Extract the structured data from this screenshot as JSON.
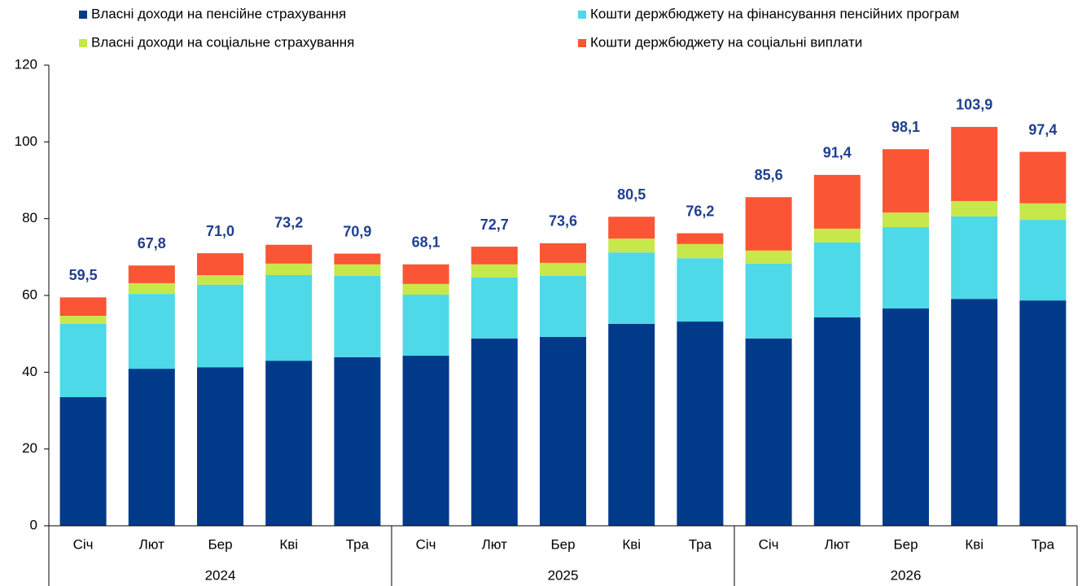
{
  "chart_data": {
    "type": "stacked_bar",
    "groups": [
      {
        "label": "2024",
        "categories": [
          "Січ",
          "Лют",
          "Бер",
          "Кві",
          "Тра"
        ]
      },
      {
        "label": "2025",
        "categories": [
          "Січ",
          "Лют",
          "Бер",
          "Кві",
          "Тра"
        ]
      },
      {
        "label": "2026",
        "categories": [
          "Січ",
          "Лют",
          "Бер",
          "Кві",
          "Тра"
        ]
      }
    ],
    "series": [
      {
        "name": "Власні доходи на пенсійне страхування",
        "color": "#023a8a",
        "values": [
          33.5,
          40.9,
          41.3,
          43.0,
          43.9,
          44.3,
          48.8,
          49.2,
          52.6,
          53.2,
          48.8,
          54.3,
          56.6,
          59.1,
          58.7
        ]
      },
      {
        "name": "Кошти держбюджету на фінансування пенсійних програм",
        "color": "#4dd9e8",
        "values": [
          19.1,
          19.5,
          21.5,
          22.3,
          21.2,
          15.9,
          15.9,
          15.9,
          18.6,
          16.5,
          19.5,
          19.5,
          21.2,
          21.5,
          21.0
        ]
      },
      {
        "name": "Власні доходи на соціальне страхування",
        "color": "#c6e84a",
        "values": [
          2.1,
          2.8,
          2.5,
          3.0,
          3.0,
          2.8,
          3.4,
          3.4,
          3.6,
          3.7,
          3.4,
          3.6,
          3.8,
          4.0,
          4.3
        ]
      },
      {
        "name": "Кошти держбюджету на соціальні виплати",
        "color": "#fa5534",
        "values": [
          4.8,
          4.6,
          5.7,
          4.9,
          2.8,
          5.1,
          4.6,
          5.1,
          5.7,
          2.8,
          13.9,
          14.0,
          16.5,
          19.3,
          13.4
        ]
      }
    ],
    "totals": [
      59.5,
      67.8,
      71.0,
      73.2,
      70.9,
      68.1,
      72.7,
      73.6,
      80.5,
      76.2,
      85.6,
      91.4,
      98.1,
      103.9,
      97.4
    ],
    "total_labels": [
      "59,5",
      "67,8",
      "71,0",
      "73,2",
      "70,9",
      "68,1",
      "72,7",
      "73,6",
      "80,5",
      "76,2",
      "85,6",
      "91,4",
      "98,1",
      "103,9",
      "97,4"
    ],
    "ylim": [
      0,
      120
    ],
    "yticks": [
      0,
      20,
      40,
      60,
      80,
      100,
      120
    ],
    "grid": false
  }
}
